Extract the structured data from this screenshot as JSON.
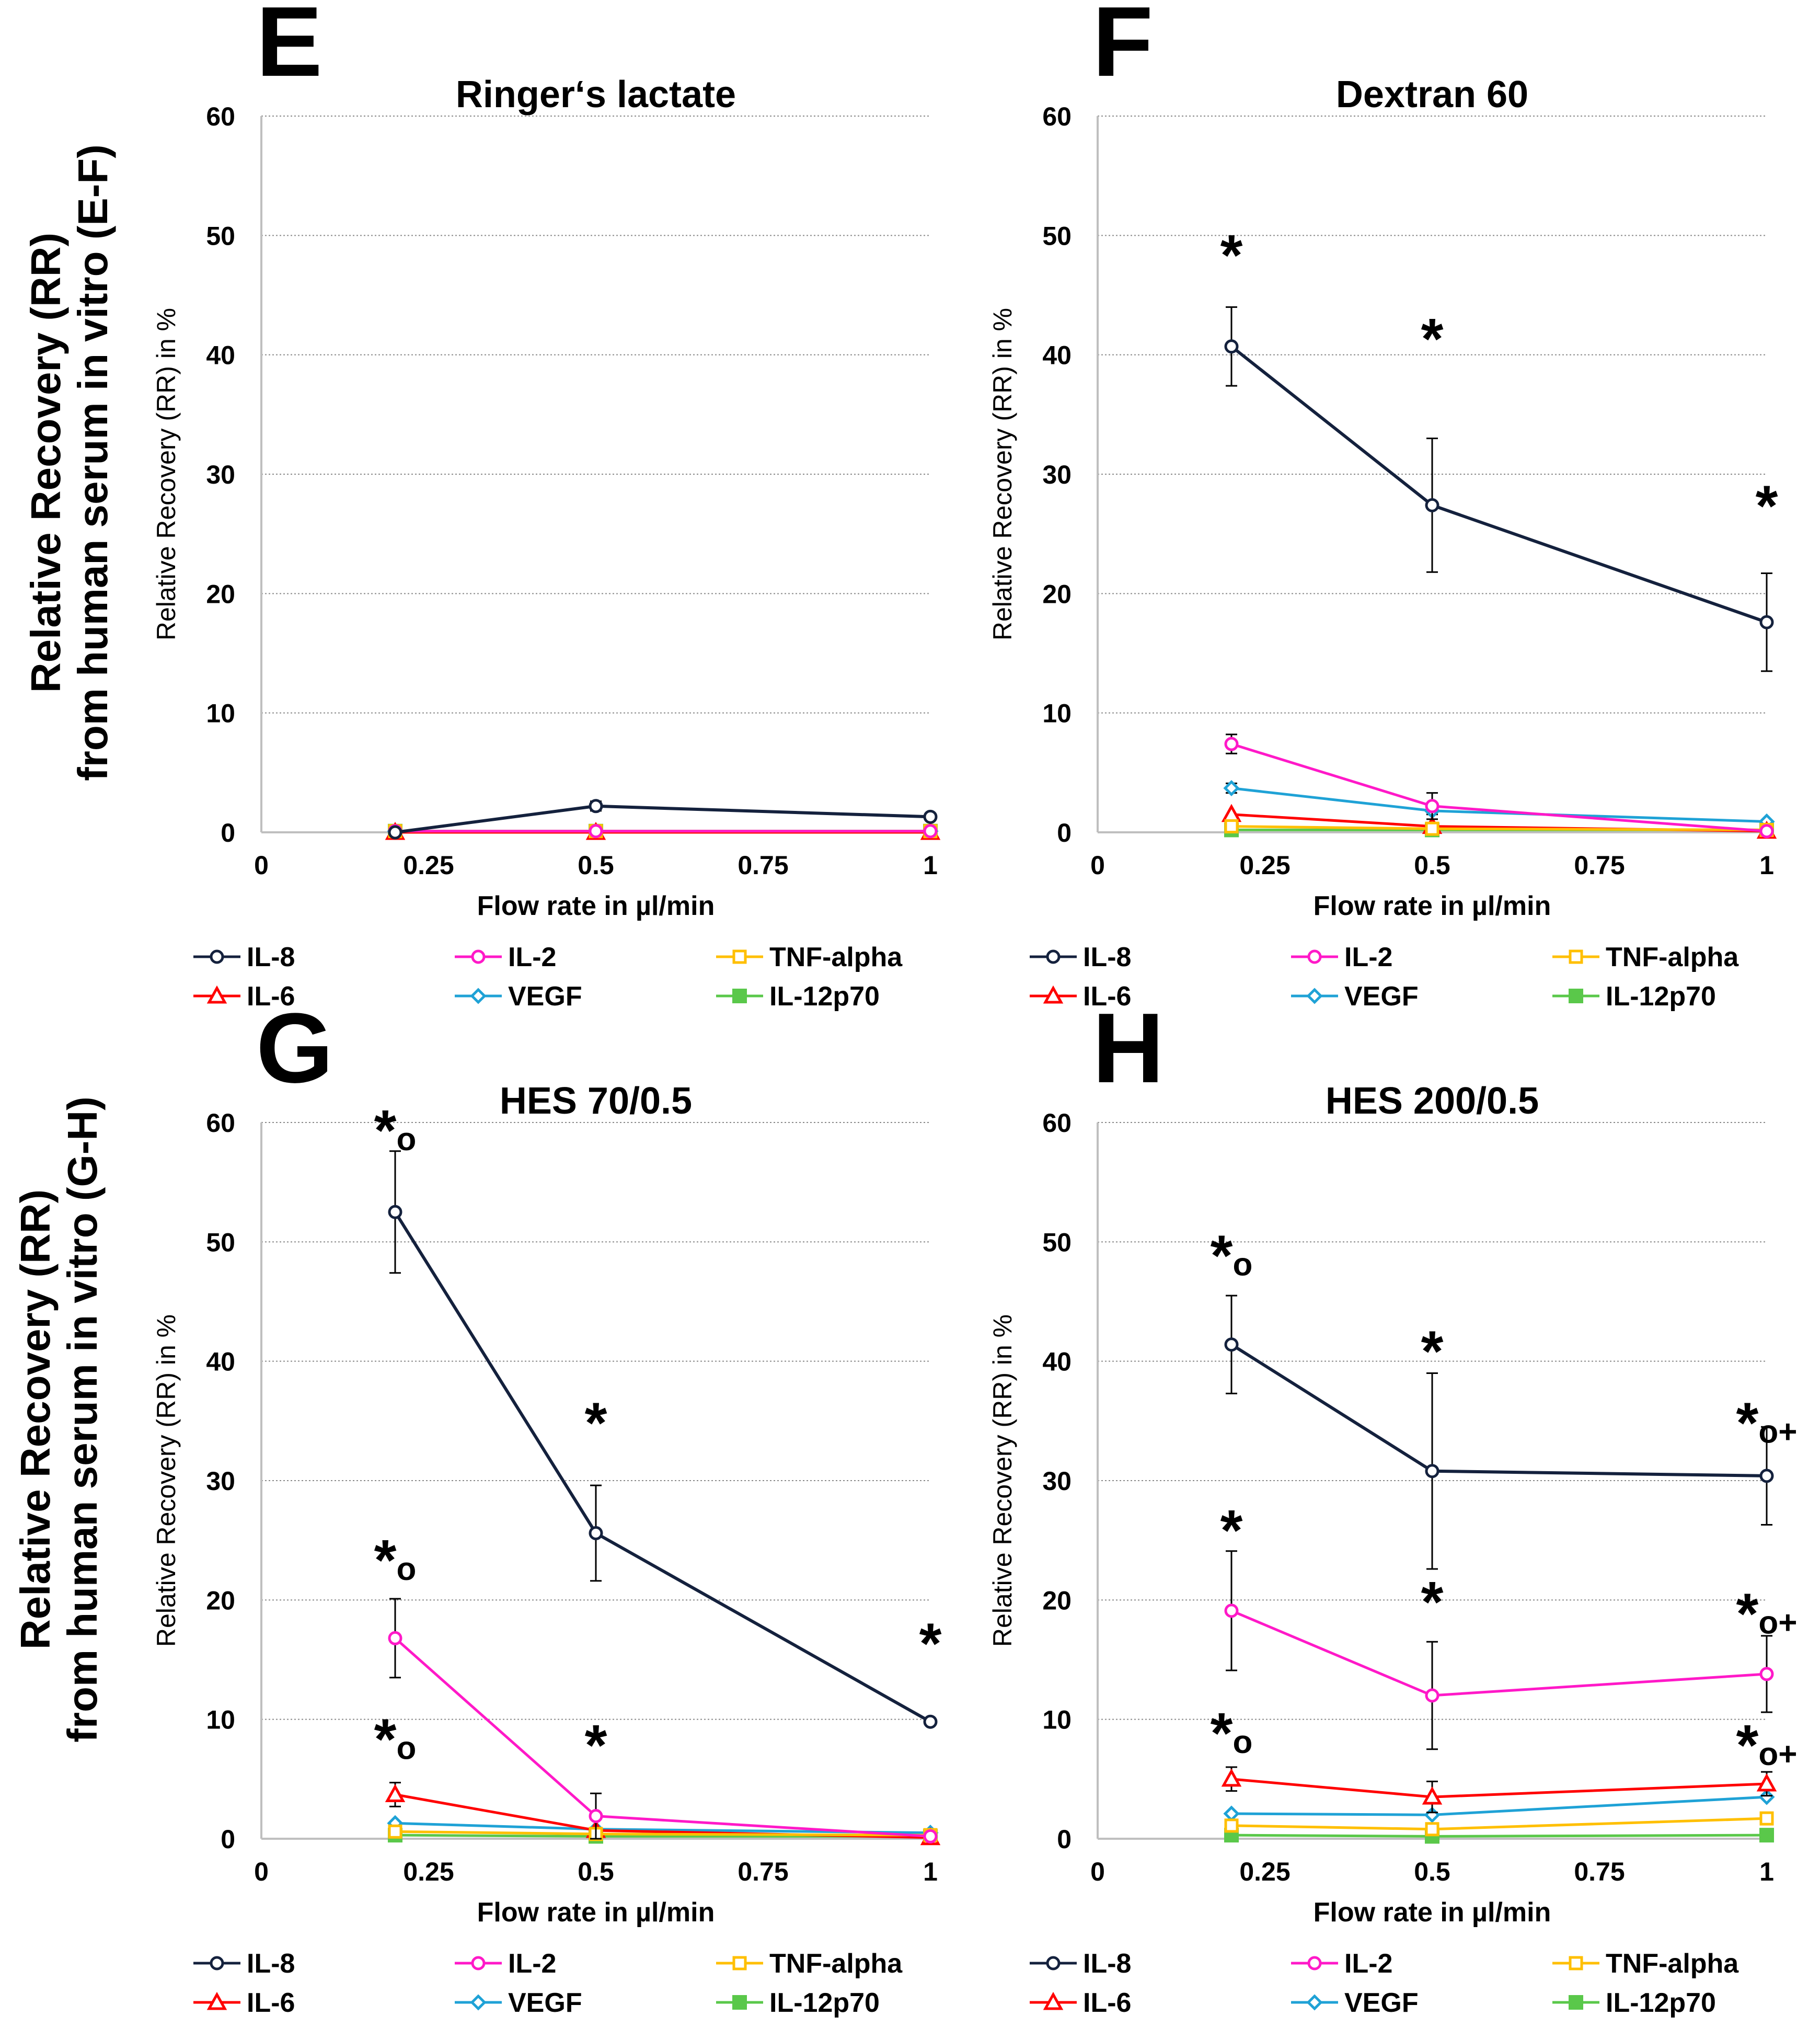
{
  "outer_labels": {
    "ef": {
      "line1": "Relative Recovery (RR)",
      "line2": "from human serum in vitro (E-F)"
    },
    "gh": {
      "line1": "Relative Recovery (RR)",
      "line2": "from human serum in vitro (G-H)"
    }
  },
  "colors": {
    "IL-8": "#14213d",
    "IL-2": "#ff19c8",
    "TNF-alpha": "#ffbf00",
    "IL-6": "#ff0000",
    "VEGF": "#1fa2d6",
    "IL-12p70": "#5ac84a"
  },
  "chart_data": [
    {
      "id": "E",
      "letter": "E",
      "type": "line",
      "title": "Ringer‘s lactate",
      "xlabel": "Flow rate in µl/min",
      "ylabel": "Relative Recovery (RR) in %",
      "xlim": [
        0,
        1
      ],
      "ylim": [
        0,
        60
      ],
      "xticks": [
        0,
        0.25,
        0.5,
        0.75,
        1
      ],
      "xtick_labels": [
        "0",
        "0.25",
        "0.5",
        "0.75",
        "1"
      ],
      "yticks": [
        0,
        10,
        20,
        30,
        40,
        50,
        60
      ],
      "ytick_labels": [
        "0",
        "10",
        "20",
        "30",
        "40",
        "50",
        "60"
      ],
      "grid": "horizontal",
      "x": [
        0.2,
        0.5,
        1
      ],
      "legend": [
        "IL-8",
        "IL-2",
        "TNF-alpha",
        "IL-6",
        "VEGF",
        "IL-12p70"
      ],
      "series": [
        {
          "name": "IL-8",
          "values": [
            0.0,
            2.2,
            1.3
          ],
          "errors": [
            0,
            0.4,
            0.2
          ]
        },
        {
          "name": "IL-2",
          "values": [
            0.1,
            0.1,
            0.1
          ],
          "errors": [
            0,
            0,
            0
          ]
        },
        {
          "name": "TNF-alpha",
          "values": [
            0.1,
            0.1,
            0.1
          ],
          "errors": [
            0,
            0,
            0
          ]
        },
        {
          "name": "IL-6",
          "values": [
            0.0,
            0.0,
            0.0
          ],
          "errors": [
            0,
            0,
            0
          ]
        },
        {
          "name": "VEGF",
          "values": [
            0.1,
            0.1,
            0.1
          ],
          "errors": [
            0,
            0,
            0
          ]
        },
        {
          "name": "IL-12p70",
          "values": [
            0.1,
            0.1,
            0.1
          ],
          "errors": [
            0,
            0,
            0
          ]
        }
      ],
      "annotations": []
    },
    {
      "id": "F",
      "letter": "F",
      "type": "line",
      "title": "Dextran 60",
      "xlabel": "Flow rate in µl/min",
      "ylabel": "Relative Recovery (RR) in %",
      "xlim": [
        0,
        1
      ],
      "ylim": [
        0,
        60
      ],
      "xticks": [
        0,
        0.25,
        0.5,
        0.75,
        1
      ],
      "xtick_labels": [
        "0",
        "0.25",
        "0.5",
        "0.75",
        "1"
      ],
      "yticks": [
        0,
        10,
        20,
        30,
        40,
        50,
        60
      ],
      "ytick_labels": [
        "0",
        "10",
        "20",
        "30",
        "40",
        "50",
        "60"
      ],
      "grid": "horizontal",
      "x": [
        0.2,
        0.5,
        1
      ],
      "legend": [
        "IL-8",
        "IL-2",
        "TNF-alpha",
        "IL-6",
        "VEGF",
        "IL-12p70"
      ],
      "series": [
        {
          "name": "IL-8",
          "values": [
            40.7,
            27.4,
            17.6
          ],
          "errors": [
            3.3,
            5.6,
            4.1
          ]
        },
        {
          "name": "IL-2",
          "values": [
            7.4,
            2.2,
            0.1
          ],
          "errors": [
            0.8,
            1.1,
            0
          ]
        },
        {
          "name": "TNF-alpha",
          "values": [
            0.5,
            0.3,
            0.2
          ],
          "errors": [
            0,
            0,
            0
          ]
        },
        {
          "name": "IL-6",
          "values": [
            1.5,
            0.5,
            0.1
          ],
          "errors": [
            0,
            0,
            0
          ]
        },
        {
          "name": "VEGF",
          "values": [
            3.7,
            1.8,
            0.9
          ],
          "errors": [
            0.4,
            0.3,
            0
          ]
        },
        {
          "name": "IL-12p70",
          "values": [
            0.2,
            0.2,
            0.2
          ],
          "errors": [
            0,
            0,
            0
          ]
        }
      ],
      "annotations": [
        {
          "x": 0.2,
          "y": 48,
          "text": "*"
        },
        {
          "x": 0.5,
          "y": 41,
          "text": "*"
        },
        {
          "x": 1,
          "y": 27,
          "text": "*"
        }
      ]
    },
    {
      "id": "G",
      "letter": "G",
      "type": "line",
      "title": "HES 70/0.5",
      "xlabel": "Flow rate in µl/min",
      "ylabel": "Relative Recovery (RR) in %",
      "xlim": [
        0,
        1
      ],
      "ylim": [
        0,
        60
      ],
      "xticks": [
        0,
        0.25,
        0.5,
        0.75,
        1
      ],
      "xtick_labels": [
        "0",
        "0.25",
        "0.5",
        "0.75",
        "1"
      ],
      "yticks": [
        0,
        10,
        20,
        30,
        40,
        50,
        60
      ],
      "ytick_labels": [
        "0",
        "10",
        "20",
        "30",
        "40",
        "50",
        "60"
      ],
      "grid": "horizontal",
      "x": [
        0.2,
        0.5,
        1
      ],
      "legend": [
        "IL-8",
        "IL-2",
        "TNF-alpha",
        "IL-6",
        "VEGF",
        "IL-12p70"
      ],
      "series": [
        {
          "name": "IL-8",
          "values": [
            52.5,
            25.6,
            9.8
          ],
          "errors": [
            5.1,
            4.0,
            0
          ]
        },
        {
          "name": "IL-2",
          "values": [
            16.8,
            1.9,
            0.2
          ],
          "errors": [
            3.3,
            1.9,
            0
          ]
        },
        {
          "name": "TNF-alpha",
          "values": [
            0.6,
            0.4,
            0.3
          ],
          "errors": [
            0,
            0,
            0
          ]
        },
        {
          "name": "IL-6",
          "values": [
            3.7,
            0.7,
            0.1
          ],
          "errors": [
            1.0,
            0,
            0
          ]
        },
        {
          "name": "VEGF",
          "values": [
            1.3,
            0.8,
            0.5
          ],
          "errors": [
            0,
            0,
            0
          ]
        },
        {
          "name": "IL-12p70",
          "values": [
            0.3,
            0.2,
            0.2
          ],
          "errors": [
            0,
            0,
            0
          ]
        }
      ],
      "annotations": [
        {
          "x": 0.2,
          "y": 59,
          "text": "*o"
        },
        {
          "x": 0.5,
          "y": 34.5,
          "text": "*"
        },
        {
          "x": 1,
          "y": 16,
          "text": "*"
        },
        {
          "x": 0.2,
          "y": 23,
          "text": "*o"
        },
        {
          "x": 0.5,
          "y": 7.5,
          "text": "*"
        },
        {
          "x": 0.2,
          "y": 8,
          "text": "*o"
        }
      ]
    },
    {
      "id": "H",
      "letter": "H",
      "type": "line",
      "title": "HES 200/0.5",
      "xlabel": "Flow rate in µl/min",
      "ylabel": "Relative Recovery (RR) in %",
      "xlim": [
        0,
        1
      ],
      "ylim": [
        0,
        60
      ],
      "xticks": [
        0,
        0.25,
        0.5,
        0.75,
        1
      ],
      "xtick_labels": [
        "0",
        "0.25",
        "0.5",
        "0.75",
        "1"
      ],
      "yticks": [
        0,
        10,
        20,
        30,
        40,
        50,
        60
      ],
      "ytick_labels": [
        "0",
        "10",
        "20",
        "30",
        "40",
        "50",
        "60"
      ],
      "grid": "horizontal",
      "x": [
        0.2,
        0.5,
        1
      ],
      "legend": [
        "IL-8",
        "IL-2",
        "TNF-alpha",
        "IL-6",
        "VEGF",
        "IL-12p70"
      ],
      "series": [
        {
          "name": "IL-8",
          "values": [
            41.4,
            30.8,
            30.4
          ],
          "errors": [
            4.1,
            8.2,
            4.1
          ]
        },
        {
          "name": "IL-2",
          "values": [
            19.1,
            12.0,
            13.8
          ],
          "errors": [
            5.0,
            4.5,
            3.2
          ]
        },
        {
          "name": "TNF-alpha",
          "values": [
            1.1,
            0.8,
            1.7
          ],
          "errors": [
            0,
            0,
            0
          ]
        },
        {
          "name": "IL-6",
          "values": [
            5.0,
            3.5,
            4.6
          ],
          "errors": [
            1.0,
            1.3,
            1.0
          ]
        },
        {
          "name": "VEGF",
          "values": [
            2.1,
            2.0,
            3.5
          ],
          "errors": [
            0,
            0,
            0
          ]
        },
        {
          "name": "IL-12p70",
          "values": [
            0.3,
            0.2,
            0.3
          ],
          "errors": [
            0,
            0,
            0
          ]
        }
      ],
      "annotations": [
        {
          "x": 0.2,
          "y": 48.5,
          "text": "*o"
        },
        {
          "x": 0.5,
          "y": 40.5,
          "text": "*"
        },
        {
          "x": 1,
          "y": 34.5,
          "text": "*o+"
        },
        {
          "x": 0.2,
          "y": 25.5,
          "text": "*"
        },
        {
          "x": 0.5,
          "y": 19.5,
          "text": "*"
        },
        {
          "x": 1,
          "y": 18.5,
          "text": "*o+"
        },
        {
          "x": 0.2,
          "y": 8.5,
          "text": "*o"
        },
        {
          "x": 1,
          "y": 7.5,
          "text": "*o+"
        }
      ]
    }
  ]
}
